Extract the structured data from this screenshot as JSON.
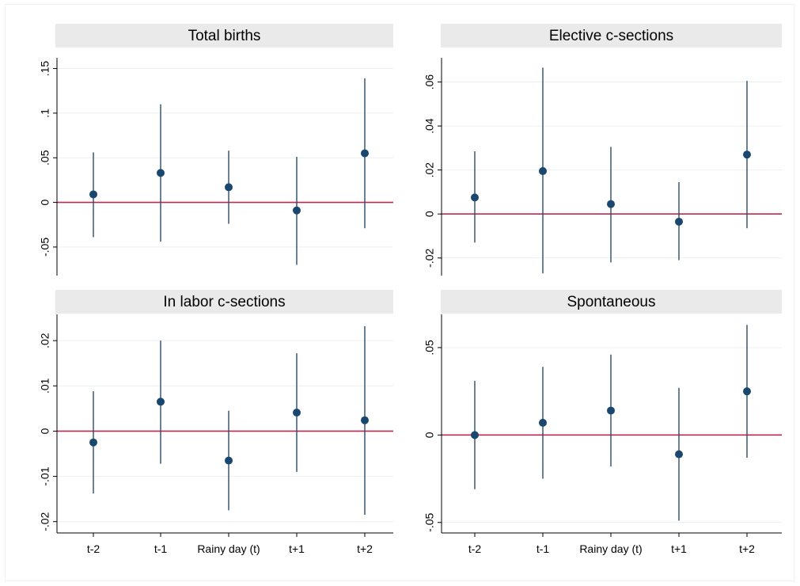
{
  "figure": {
    "background": "#ffffff",
    "panel_header_color": "#eaeaea",
    "grid_color": "#e9f0f3",
    "point_color": "#1a476f",
    "interval_color": "#2c4b66",
    "reference_line_color": "#c0294f",
    "axis_color": "#000000"
  },
  "chart_data": [
    {
      "type": "scatter",
      "title": "Total births",
      "xlabel": "",
      "ylabel": "",
      "categories": [
        "t-2",
        "t-1",
        "Rainy day (t)",
        "t+1",
        "t+2"
      ],
      "show_x_tick_labels": false,
      "yticks": [
        -0.05,
        0,
        0.05,
        0.1,
        0.15
      ],
      "ytick_labels": [
        "-.05",
        "0",
        ".05",
        ".1",
        ".15"
      ],
      "ylim": [
        -0.082,
        0.162
      ],
      "reference_line": 0,
      "grid": true,
      "series": [
        {
          "estimates": [
            0.009,
            0.033,
            0.017,
            -0.009,
            0.055
          ],
          "ci_low": [
            -0.039,
            -0.044,
            -0.024,
            -0.07,
            -0.029
          ],
          "ci_high": [
            0.056,
            0.11,
            0.058,
            0.051,
            0.139
          ]
        }
      ]
    },
    {
      "type": "scatter",
      "title": "Elective c-sections",
      "xlabel": "",
      "ylabel": "",
      "categories": [
        "t-2",
        "t-1",
        "Rainy day (t)",
        "t+1",
        "t+2"
      ],
      "show_x_tick_labels": false,
      "yticks": [
        -0.02,
        0,
        0.02,
        0.04,
        0.06
      ],
      "ytick_labels": [
        "-.02",
        "0",
        ".02",
        ".04",
        ".06"
      ],
      "ylim": [
        -0.028,
        0.071
      ],
      "reference_line": 0,
      "grid": true,
      "series": [
        {
          "estimates": [
            0.0075,
            0.0195,
            0.0045,
            -0.0035,
            0.027
          ],
          "ci_low": [
            -0.013,
            -0.027,
            -0.022,
            -0.021,
            -0.0065
          ],
          "ci_high": [
            0.0285,
            0.0665,
            0.0305,
            0.0145,
            0.0605
          ]
        }
      ]
    },
    {
      "type": "scatter",
      "title": "In labor c-sections",
      "xlabel": "",
      "ylabel": "",
      "categories": [
        "t-2",
        "t-1",
        "Rainy day (t)",
        "t+1",
        "t+2"
      ],
      "show_x_tick_labels": true,
      "yticks": [
        -0.02,
        -0.01,
        0,
        0.01,
        0.02
      ],
      "ytick_labels": [
        "-.02",
        "-.01",
        "0",
        ".01",
        ".02"
      ],
      "ylim": [
        -0.0225,
        0.0258
      ],
      "reference_line": 0,
      "grid": true,
      "series": [
        {
          "estimates": [
            -0.0025,
            0.0065,
            -0.0065,
            0.0041,
            0.0024
          ],
          "ci_low": [
            -0.0138,
            -0.0072,
            -0.0175,
            -0.009,
            -0.0185
          ],
          "ci_high": [
            0.0088,
            0.02,
            0.0045,
            0.0172,
            0.0232
          ]
        }
      ]
    },
    {
      "type": "scatter",
      "title": "Spontaneous",
      "xlabel": "",
      "ylabel": "",
      "categories": [
        "t-2",
        "t-1",
        "Rainy day (t)",
        "t+1",
        "t+2"
      ],
      "show_x_tick_labels": true,
      "yticks": [
        -0.05,
        0,
        0.05
      ],
      "ytick_labels": [
        "-.05",
        "0",
        ".05"
      ],
      "ylim": [
        -0.056,
        0.069
      ],
      "reference_line": 0,
      "grid": true,
      "series": [
        {
          "estimates": [
            0.0,
            0.007,
            0.014,
            -0.011,
            0.025
          ],
          "ci_low": [
            -0.031,
            -0.025,
            -0.018,
            -0.049,
            -0.013
          ],
          "ci_high": [
            0.031,
            0.039,
            0.046,
            0.027,
            0.063
          ]
        }
      ]
    }
  ]
}
